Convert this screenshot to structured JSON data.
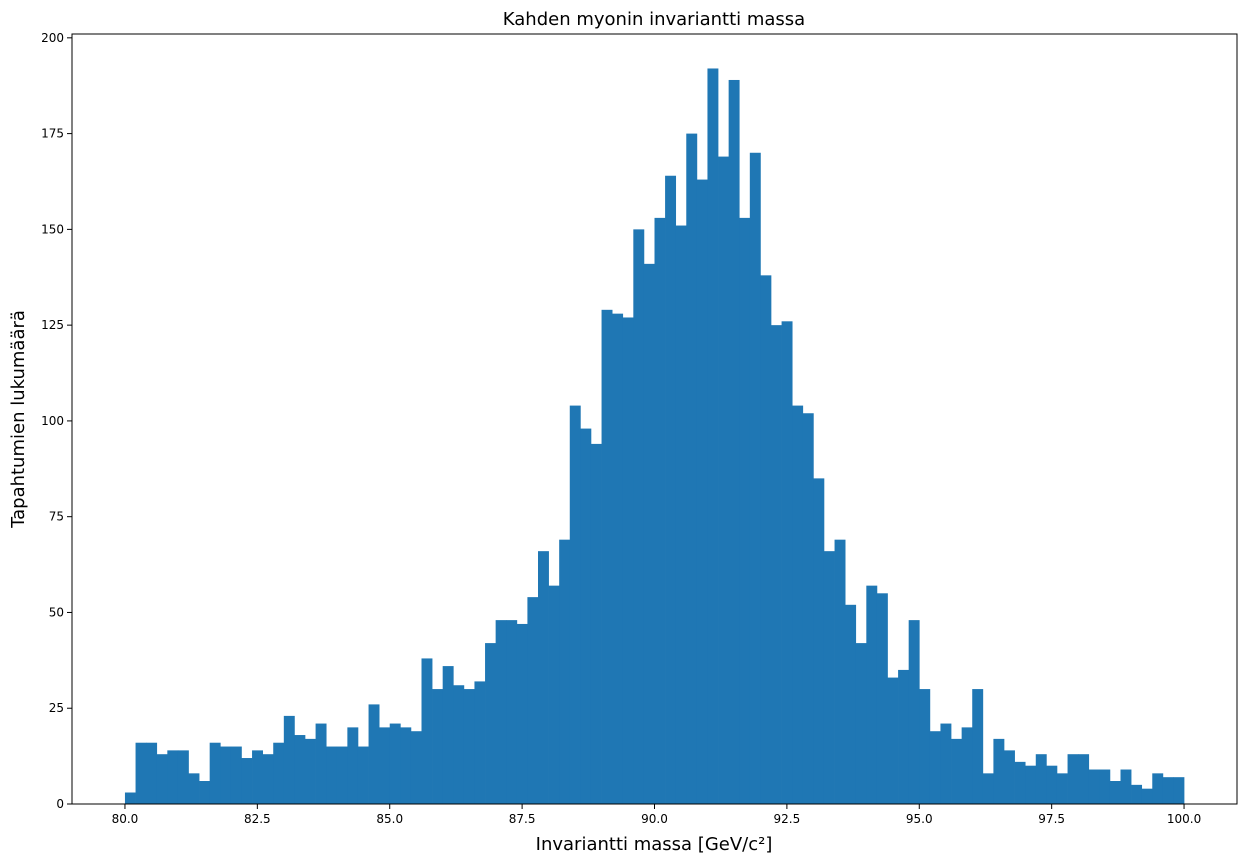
{
  "chart_data": {
    "type": "bar",
    "title": "Kahden myonin invariantti massa",
    "xlabel": "Invariantti massa [GeV/c²]",
    "ylabel": "Tapahtumien lukumäärä",
    "xlim": [
      79.0,
      101.0
    ],
    "ylim": [
      0,
      201
    ],
    "bin_start": 80.0,
    "bin_width": 0.2,
    "color": "#1f77b4",
    "grid": false,
    "xticks": [
      "80.0",
      "82.5",
      "85.0",
      "87.5",
      "90.0",
      "92.5",
      "95.0",
      "97.5",
      "100.0"
    ],
    "xtick_values": [
      80.0,
      82.5,
      85.0,
      87.5,
      90.0,
      92.5,
      95.0,
      97.5,
      100.0
    ],
    "yticks": [
      "0",
      "25",
      "50",
      "75",
      "100",
      "125",
      "150",
      "175",
      "200"
    ],
    "ytick_values": [
      0,
      25,
      50,
      75,
      100,
      125,
      150,
      175,
      200
    ],
    "values": [
      3,
      16,
      16,
      13,
      14,
      14,
      8,
      6,
      16,
      15,
      15,
      12,
      14,
      13,
      16,
      23,
      18,
      17,
      21,
      15,
      15,
      20,
      15,
      26,
      20,
      21,
      20,
      19,
      38,
      30,
      36,
      31,
      30,
      32,
      42,
      48,
      48,
      47,
      54,
      66,
      57,
      69,
      104,
      98,
      94,
      129,
      128,
      127,
      150,
      141,
      153,
      164,
      151,
      175,
      163,
      192,
      169,
      189,
      153,
      170,
      138,
      125,
      126,
      104,
      102,
      85,
      66,
      69,
      52,
      42,
      57,
      55,
      33,
      35,
      48,
      30,
      19,
      21,
      17,
      20,
      30,
      8,
      17,
      14,
      11,
      10,
      13,
      10,
      8,
      13,
      13,
      9,
      9,
      6,
      9,
      5,
      4,
      8,
      7,
      7
    ]
  }
}
